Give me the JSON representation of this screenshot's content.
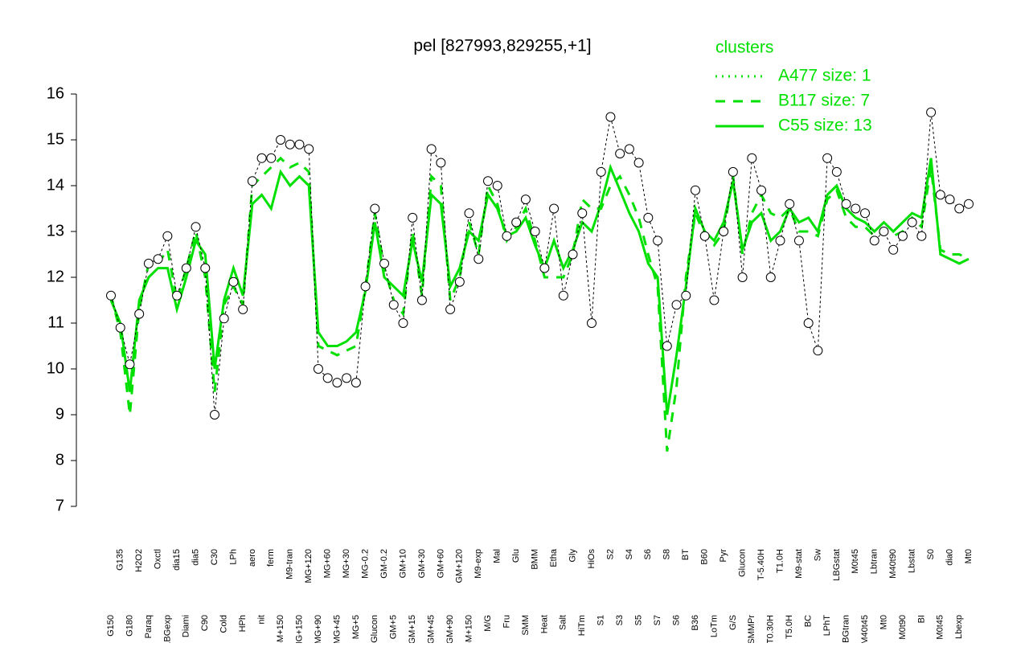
{
  "chart_data": {
    "type": "line",
    "title": "pel [827993,829255,+1]",
    "legend_title": "clusters",
    "categories": [
      "G150",
      "G135",
      "G180",
      "H2O2",
      "Paraq",
      "Oxctl",
      "LBGexp",
      "dia15",
      "Diami",
      "dia5",
      "C90",
      "C30",
      "Cold",
      "LPh",
      "HPh",
      "aero",
      "nit",
      "ferm",
      "GM+150",
      "M9-tran",
      "MG+150",
      "MG+120",
      "MG+90",
      "MG+60",
      "MG+45",
      "MG+30",
      "MG+5",
      "MG-0.2",
      "Glucon",
      "GM-0.2",
      "GM+5",
      "GM+10",
      "GM+15",
      "GM+30",
      "GM+45",
      "GM+60",
      "GM+90",
      "GM+120",
      "GM+150",
      "M9-exp",
      "M/G",
      "Mal",
      "Fru",
      "Glu",
      "SMM",
      "BMM",
      "Heat",
      "Etha",
      "Salt",
      "Gly",
      "HiTm",
      "HiOs",
      "S1",
      "S2",
      "S3",
      "S4",
      "S5",
      "S6",
      "S7",
      "S8",
      "S6",
      "BT",
      "B36",
      "B60",
      "LoTm",
      "Pyr",
      "G/S",
      "Glucon",
      "SMMPr",
      "T-5.40H",
      "T0.30H",
      "T1.0H",
      "T5.0H",
      "M9-stat",
      "BC",
      "Sw",
      "LPhT",
      "LBGstat",
      "LBGtran",
      "M0t45",
      "M40t45",
      "Lbtran",
      "Mt0",
      "M40t90",
      "M0t90",
      "Lbstat",
      "BI",
      "S0",
      "M0t45",
      "dia0",
      "Lbexp",
      "Mt0"
    ],
    "values": [
      11.6,
      10.9,
      10.1,
      11.2,
      12.3,
      12.4,
      12.9,
      11.6,
      12.2,
      13.1,
      12.2,
      9.0,
      11.1,
      11.9,
      11.3,
      14.1,
      14.6,
      14.6,
      15.0,
      14.9,
      14.9,
      14.8,
      10.0,
      9.8,
      9.7,
      9.8,
      9.7,
      11.8,
      13.5,
      12.3,
      11.4,
      11.0,
      13.3,
      11.5,
      14.8,
      14.5,
      11.3,
      11.9,
      13.4,
      12.4,
      14.1,
      14.0,
      12.9,
      13.2,
      13.7,
      13.0,
      12.2,
      13.5,
      11.6,
      12.5,
      13.4,
      11.0,
      14.3,
      15.5,
      14.7,
      14.8,
      14.5,
      13.3,
      12.8,
      10.5,
      11.4,
      11.6,
      13.9,
      12.9,
      11.5,
      13.0,
      14.3,
      12.0,
      14.6,
      13.9,
      12.0,
      12.8,
      13.6,
      12.8,
      11.0,
      10.4,
      14.6,
      14.3,
      13.6,
      13.5,
      13.4,
      12.8,
      13.0,
      12.6,
      12.9,
      13.2,
      12.9,
      15.6,
      13.8,
      13.7,
      13.5,
      13.6
    ],
    "point_color": "#000000",
    "series": [
      {
        "name": "A477 size: 1",
        "color": "#00e000",
        "dash": "dotted",
        "values": [
          null,
          null,
          null,
          null,
          null,
          null,
          null,
          null,
          null,
          null,
          null,
          null,
          null,
          null,
          null,
          null,
          null,
          null,
          null,
          null,
          null,
          null,
          null,
          null,
          null,
          null,
          null,
          null,
          null,
          null,
          null,
          null,
          null,
          null,
          null,
          null,
          null,
          null,
          null,
          null,
          null,
          null,
          null,
          null,
          null,
          null,
          null,
          null,
          null,
          null,
          null,
          null,
          null,
          null,
          null,
          null,
          null,
          null,
          null,
          null,
          null,
          null,
          null,
          null,
          null,
          null,
          null,
          null,
          null,
          null,
          null,
          null,
          null,
          null,
          null,
          null,
          null,
          null,
          null,
          null,
          null,
          null,
          null,
          null,
          null,
          null,
          null,
          null,
          null,
          null,
          null,
          null
        ]
      },
      {
        "name": "B117 size: 7",
        "color": "#00e000",
        "dash": "dashed",
        "values": [
          11.6,
          10.8,
          9.0,
          11.3,
          12.3,
          12.3,
          12.6,
          11.5,
          12.2,
          13.0,
          12.0,
          9.5,
          11.4,
          11.8,
          11.4,
          14.0,
          14.2,
          14.4,
          14.6,
          14.4,
          14.5,
          14.3,
          10.5,
          10.4,
          10.3,
          10.4,
          10.5,
          11.8,
          13.4,
          12.2,
          11.5,
          11.2,
          13.0,
          11.6,
          14.2,
          14.0,
          11.5,
          12.0,
          13.2,
          12.5,
          14.0,
          13.6,
          12.8,
          13.1,
          13.5,
          12.8,
          12.0,
          12.0,
          12.0,
          12.5,
          13.7,
          13.5,
          13.5,
          14.0,
          14.2,
          13.8,
          13.3,
          12.5,
          11.8,
          8.2,
          9.6,
          12.0,
          13.4,
          12.9,
          12.7,
          13.0,
          14.2,
          12.5,
          13.4,
          13.8,
          13.4,
          13.3,
          13.5,
          13.0,
          13.0,
          12.9,
          13.7,
          13.9,
          13.3,
          13.1,
          13.1,
          12.9,
          13.0,
          12.9,
          13.0,
          13.3,
          13.1,
          14.4,
          12.6,
          12.5,
          12.5,
          12.4
        ]
      },
      {
        "name": "C55 size: 13",
        "color": "#00e000",
        "dash": "solid",
        "values": [
          11.5,
          11.0,
          9.5,
          11.5,
          12.0,
          12.2,
          12.2,
          11.3,
          12.0,
          12.8,
          12.5,
          10.0,
          11.5,
          12.2,
          11.6,
          13.6,
          13.8,
          13.5,
          14.3,
          14.0,
          14.2,
          14.0,
          10.8,
          10.5,
          10.5,
          10.6,
          10.8,
          11.7,
          13.2,
          12.0,
          11.8,
          11.6,
          12.8,
          11.9,
          13.8,
          13.6,
          11.8,
          12.2,
          13.0,
          12.8,
          13.8,
          13.5,
          12.9,
          13.0,
          13.3,
          12.7,
          12.2,
          12.8,
          12.2,
          12.6,
          13.2,
          13.0,
          13.6,
          14.4,
          13.9,
          13.4,
          13.0,
          12.3,
          12.0,
          9.0,
          10.3,
          11.8,
          13.5,
          13.0,
          12.8,
          13.2,
          14.1,
          12.6,
          13.2,
          13.4,
          12.8,
          13.0,
          13.5,
          13.2,
          13.3,
          13.0,
          13.8,
          14.0,
          13.5,
          13.3,
          13.2,
          13.0,
          13.2,
          13.0,
          13.2,
          13.4,
          13.3,
          14.6,
          12.5,
          12.4,
          12.3,
          12.4
        ]
      }
    ],
    "ylim": [
      7,
      16
    ],
    "yticks": [
      7,
      8,
      9,
      10,
      11,
      12,
      13,
      14,
      15,
      16
    ]
  }
}
